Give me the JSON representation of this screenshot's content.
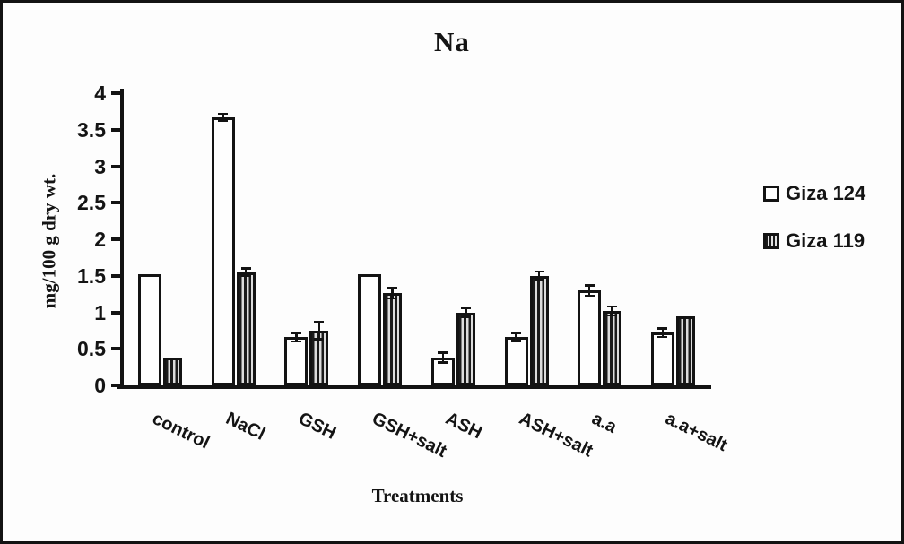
{
  "figure": {
    "background_color": "#fdfdfd",
    "border_color": "#131313",
    "ink_color": "#141414"
  },
  "chart_data": {
    "type": "bar",
    "title": "Na",
    "xlabel": "Treatments",
    "ylabel": "mg/100 g dry wt.",
    "categories": [
      "control",
      "NaCl",
      "GSH",
      "GSH+salt",
      "ASH",
      "ASH+salt",
      "a.a",
      "a.a+salt"
    ],
    "series": [
      {
        "name": "Giza 124",
        "fill": "white",
        "values": [
          1.52,
          3.67,
          0.66,
          1.52,
          0.38,
          0.66,
          1.3,
          0.72
        ],
        "errors": [
          0,
          0.05,
          0.06,
          0,
          0.07,
          0.05,
          0.07,
          0.06
        ]
      },
      {
        "name": "Giza 119",
        "fill": "vertical-stripes",
        "values": [
          0.38,
          1.55,
          0.75,
          1.26,
          1.0,
          1.5,
          1.02,
          0.95
        ],
        "errors": [
          0,
          0.05,
          0.12,
          0.07,
          0.06,
          0.06,
          0.06,
          0
        ]
      }
    ],
    "ylim": [
      0,
      4
    ],
    "yticks": [
      0,
      0.5,
      1,
      1.5,
      2,
      2.5,
      3,
      3.5,
      4
    ],
    "grid": false,
    "legend_position": "right",
    "error_bars": true
  }
}
